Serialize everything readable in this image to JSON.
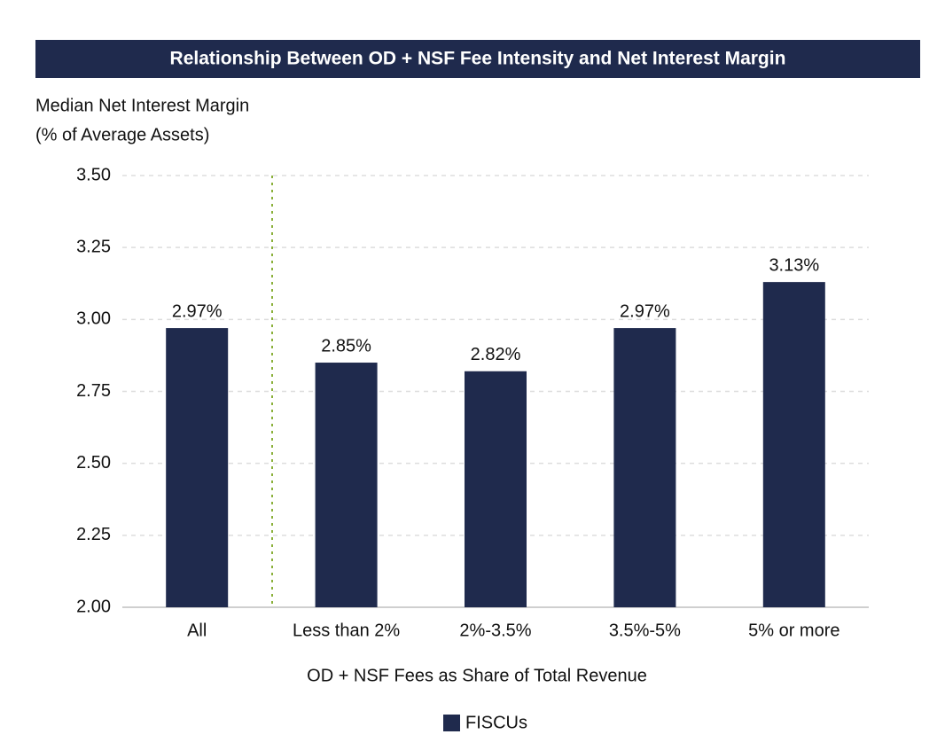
{
  "chart_data": {
    "type": "bar",
    "title": "Relationship Between OD + NSF Fee Intensity and Net Interest Margin",
    "y_label_lines": [
      "Median Net Interest Margin",
      "(% of Average Assets)"
    ],
    "x_label": "OD + NSF Fees as Share of Total Revenue",
    "categories": [
      "All",
      "Less than 2%",
      "2%-3.5%",
      "3.5%-5%",
      "5% or more"
    ],
    "series": [
      {
        "name": "FISCUs",
        "color": "#1f2a4d",
        "values": [
          2.97,
          2.85,
          2.82,
          2.97,
          3.13
        ],
        "value_labels": [
          "2.97%",
          "2.85%",
          "2.82%",
          "2.97%",
          "3.13%"
        ]
      }
    ],
    "ylim": [
      2.0,
      3.5
    ],
    "yticks": [
      {
        "value": 2.0,
        "label": "2.00"
      },
      {
        "value": 2.25,
        "label": "2.25"
      },
      {
        "value": 2.5,
        "label": "2.50"
      },
      {
        "value": 2.75,
        "label": "2.75"
      },
      {
        "value": 3.0,
        "label": "3.00"
      },
      {
        "value": 3.25,
        "label": "3.25"
      },
      {
        "value": 3.5,
        "label": "3.50"
      }
    ],
    "grid": true,
    "legend": "bottom"
  }
}
